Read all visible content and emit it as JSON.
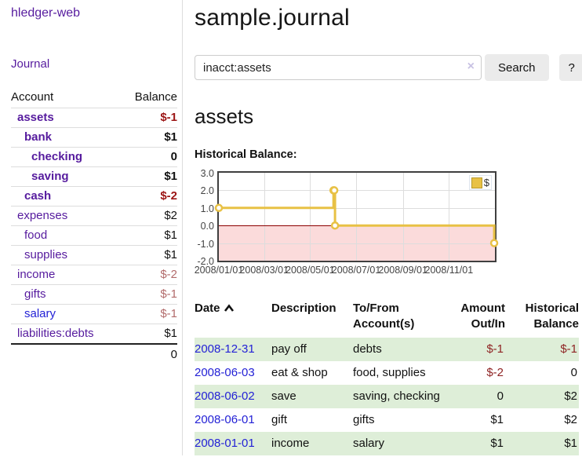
{
  "sidebar": {
    "app_title": "hledger-web",
    "nav_journal": "Journal",
    "accounts_table": {
      "col_account": "Account",
      "col_balance": "Balance",
      "rows": [
        {
          "name": "assets",
          "indent": 0,
          "bold": true,
          "balance": "$-1",
          "style": "neg"
        },
        {
          "name": "bank",
          "indent": 1,
          "bold": true,
          "balance": "$1",
          "style": "pos"
        },
        {
          "name": "checking",
          "indent": 2,
          "bold": true,
          "balance": "0",
          "style": "pos"
        },
        {
          "name": "saving",
          "indent": 2,
          "bold": true,
          "balance": "$1",
          "style": "pos"
        },
        {
          "name": "cash",
          "indent": 1,
          "bold": true,
          "balance": "$-2",
          "style": "neg"
        },
        {
          "name": "expenses",
          "indent": 0,
          "bold": false,
          "balance": "$2",
          "style": "pos"
        },
        {
          "name": "food",
          "indent": 1,
          "bold": false,
          "balance": "$1",
          "style": "pos"
        },
        {
          "name": "supplies",
          "indent": 1,
          "bold": false,
          "balance": "$1",
          "style": "pos"
        },
        {
          "name": "income",
          "indent": 0,
          "bold": false,
          "balance": "$-2",
          "style": "negdim"
        },
        {
          "name": "gifts",
          "indent": 1,
          "bold": false,
          "balance": "$-1",
          "style": "negdim"
        },
        {
          "name": "salary",
          "indent": 1,
          "bold": false,
          "balance": "$-1",
          "style": "negdim",
          "link": "blue"
        },
        {
          "name": "liabilities:debts",
          "indent": 0,
          "bold": false,
          "balance": "$1",
          "style": "pos"
        }
      ],
      "total": "0"
    }
  },
  "header": {
    "title": "sample.journal"
  },
  "search": {
    "value": "inacct:assets",
    "clear_icon": "×",
    "button_label": "Search",
    "help_label": "?"
  },
  "account_page": {
    "heading": "assets",
    "chart_title": "Historical Balance:"
  },
  "chart_data": {
    "type": "line",
    "title": "Historical Balance",
    "legend_position": "top-right",
    "grid": true,
    "ylim": [
      -2.0,
      3.0
    ],
    "y_ticks": [
      "3.0",
      "2.0",
      "1.0",
      "0.0",
      "-1.0",
      "-2.0"
    ],
    "y_tick_values": [
      3,
      2,
      1,
      0,
      -1,
      -2
    ],
    "x_range_days": 366,
    "x_ticks": [
      {
        "day": 0,
        "label": "2008/01/01"
      },
      {
        "day": 60,
        "label": "2008/03/01"
      },
      {
        "day": 121,
        "label": "2008/05/01"
      },
      {
        "day": 182,
        "label": "2008/07/01"
      },
      {
        "day": 244,
        "label": "2008/09/01"
      },
      {
        "day": 305,
        "label": "2008/11/01"
      }
    ],
    "series": [
      {
        "name": "$",
        "color": "#e8c145",
        "style": "step",
        "points": [
          {
            "date": "2008-01-01",
            "day": 0,
            "value": 1
          },
          {
            "date": "2008-06-01",
            "day": 152,
            "value": 2
          },
          {
            "date": "2008-06-02",
            "day": 153,
            "value": 2
          },
          {
            "date": "2008-06-03",
            "day": 154,
            "value": 0
          },
          {
            "date": "2008-12-31",
            "day": 365,
            "value": -1
          }
        ]
      }
    ],
    "negative_region_color": "#fbdbdb",
    "zero_line_color": "#8b0000",
    "legend": {
      "label": "$",
      "swatch_color": "#e8c145"
    }
  },
  "register_table": {
    "col_date": "Date",
    "col_description": "Description",
    "col_accounts": "To/From Account(s)",
    "col_amount": "Amount Out/In",
    "col_balance": "Historical Balance",
    "sort": "ascending",
    "rows": [
      {
        "date": "2008-12-31",
        "description": "pay off",
        "accounts": "debts",
        "amount": "$-1",
        "amount_neg": true,
        "balance": "$-1",
        "balance_neg": true,
        "green": true
      },
      {
        "date": "2008-06-03",
        "description": "eat & shop",
        "accounts": "food, supplies",
        "amount": "$-2",
        "amount_neg": true,
        "balance": "0",
        "balance_neg": false,
        "green": false
      },
      {
        "date": "2008-06-02",
        "description": "save",
        "accounts": "saving, checking",
        "amount": "0",
        "amount_neg": false,
        "balance": "$2",
        "balance_neg": false,
        "green": true
      },
      {
        "date": "2008-06-01",
        "description": "gift",
        "accounts": "gifts",
        "amount": "$1",
        "amount_neg": false,
        "balance": "$2",
        "balance_neg": false,
        "green": false
      },
      {
        "date": "2008-01-01",
        "description": "income",
        "accounts": "salary",
        "amount": "$1",
        "amount_neg": false,
        "balance": "$1",
        "balance_neg": false,
        "green": true
      }
    ]
  }
}
